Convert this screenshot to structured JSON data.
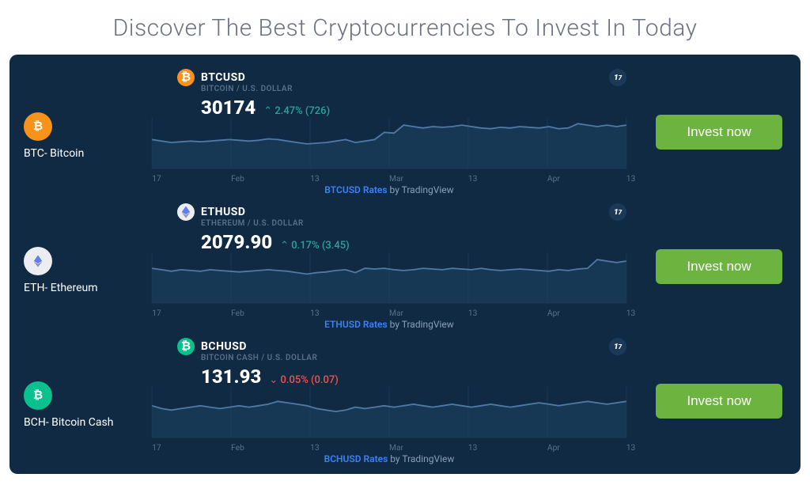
{
  "page": {
    "title": "Discover The Best Cryptocurrencies To Invest In Today",
    "panel_bg": "#102a44",
    "attribution_by": " by TradingView",
    "x_labels": [
      "17",
      "Feb",
      "13",
      "Mar",
      "13",
      "Apr",
      "13"
    ],
    "line_color": "#4f7aa6",
    "fill_color": "#1d4260",
    "grid_color": "#1a3752"
  },
  "coins": [
    {
      "id": "btc",
      "label": "BTC- Bitcoin",
      "ticker": "BTCUSD",
      "pair_sub": "BITCOIN / U.S. DOLLAR",
      "price": "30174",
      "change_dir": "up",
      "change_text": "2.47% (726)",
      "rates_link": "BTCUSD Rates",
      "icon_bg": "#f7931a",
      "invest_label": "Invest now",
      "series": [
        40,
        38,
        36,
        37,
        38,
        37,
        38,
        39,
        40,
        39,
        38,
        39,
        41,
        40,
        38,
        36,
        34,
        35,
        36,
        38,
        40,
        36,
        38,
        40,
        50,
        49,
        60,
        58,
        56,
        58,
        57,
        58,
        60,
        58,
        56,
        55,
        57,
        56,
        58,
        57,
        56,
        58,
        55,
        56,
        62,
        60,
        58,
        60,
        58,
        60
      ],
      "y_range": 70
    },
    {
      "id": "eth",
      "label": "ETH- Ethereum",
      "ticker": "ETHUSD",
      "pair_sub": "ETHEREUM / U.S. DOLLAR",
      "price": "2079.90",
      "change_dir": "up",
      "change_text": "0.17% (3.45)",
      "rates_link": "ETHUSD Rates",
      "icon_bg": "#ecedf0",
      "invest_label": "Invest now",
      "series": [
        48,
        46,
        44,
        46,
        45,
        44,
        46,
        45,
        44,
        43,
        44,
        45,
        46,
        45,
        44,
        42,
        40,
        42,
        43,
        45,
        46,
        42,
        48,
        47,
        48,
        46,
        45,
        46,
        48,
        47,
        46,
        48,
        47,
        46,
        48,
        46,
        45,
        46,
        47,
        46,
        45,
        44,
        46,
        45,
        47,
        48,
        60,
        58,
        56,
        58
      ],
      "y_range": 70
    },
    {
      "id": "bch",
      "label": "BCH- Bitcoin Cash",
      "ticker": "BCHUSD",
      "pair_sub": "BITCOIN CASH / U.S. DOLLAR",
      "price": "131.93",
      "change_dir": "down",
      "change_text": "0.05% (0.07)",
      "rates_link": "BCHUSD Rates",
      "icon_bg": "#0ac18e",
      "invest_label": "Invest now",
      "series": [
        44,
        40,
        38,
        40,
        42,
        44,
        42,
        40,
        42,
        44,
        42,
        44,
        46,
        50,
        48,
        46,
        44,
        40,
        38,
        36,
        38,
        42,
        40,
        42,
        44,
        42,
        44,
        46,
        44,
        42,
        44,
        46,
        44,
        42,
        44,
        46,
        44,
        42,
        44,
        46,
        48,
        46,
        44,
        46,
        48,
        50,
        48,
        46,
        48,
        50
      ],
      "y_range": 70
    }
  ]
}
